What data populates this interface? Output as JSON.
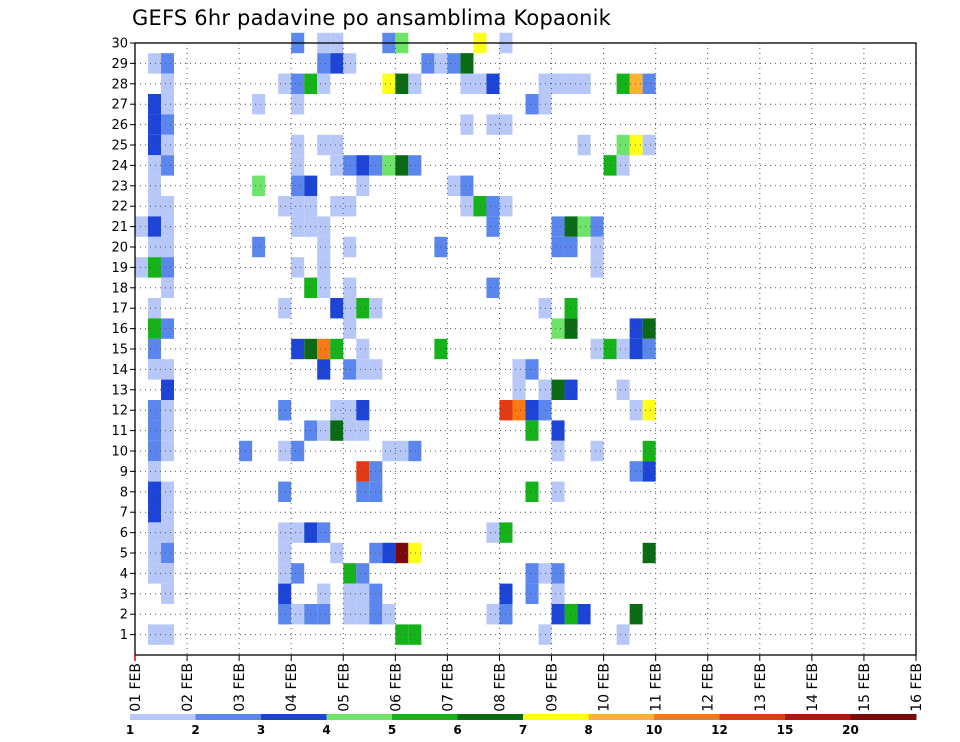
{
  "chart_data": {
    "type": "heatmap",
    "title": "GEFS 6hr padavine po ansamblima Kopaonik",
    "xlabel": "",
    "ylabel": "",
    "x_tick_labels": [
      "01 FEB",
      "02 FEB",
      "03 FEB",
      "04 FEB",
      "05 FEB",
      "06 FEB",
      "07 FEB",
      "08 FEB",
      "09 FEB",
      "10 FEB",
      "11 FEB",
      "12 FEB",
      "13 FEB",
      "14 FEB",
      "15 FEB",
      "16 FEB"
    ],
    "y_tick_labels": [
      "1",
      "2",
      "3",
      "4",
      "5",
      "6",
      "7",
      "8",
      "9",
      "10",
      "11",
      "12",
      "13",
      "14",
      "15",
      "16",
      "17",
      "18",
      "19",
      "20",
      "21",
      "22",
      "23",
      "24",
      "25",
      "26",
      "27",
      "28",
      "29",
      "30"
    ],
    "x_range_days": [
      0,
      15
    ],
    "y_range": [
      0,
      30
    ],
    "time_step_hours": 6,
    "grid": true,
    "levels": [
      {
        "label": "1",
        "color": "#b7c7f7"
      },
      {
        "label": "2",
        "color": "#5b86ee"
      },
      {
        "label": "3",
        "color": "#1c45d8"
      },
      {
        "label": "4",
        "color": "#6fe46a"
      },
      {
        "label": "5",
        "color": "#15b21a"
      },
      {
        "label": "6",
        "color": "#0a6b14"
      },
      {
        "label": "7",
        "color": "#ffff1a"
      },
      {
        "label": "8",
        "color": "#fbb132"
      },
      {
        "label": "10",
        "color": "#f97a15"
      },
      {
        "label": "12",
        "color": "#e23a14"
      },
      {
        "label": "15",
        "color": "#b81210"
      },
      {
        "label": "20",
        "color": "#7a0a08"
      }
    ],
    "legend_labels": [
      "1",
      "2",
      "3",
      "4",
      "5",
      "6",
      "7",
      "8",
      "10",
      "12",
      "15",
      "20"
    ],
    "cells_note": "each cell = [member, 6h step index from 01 FEB 00Z, level index into levels]",
    "cells": [
      [
        30,
        12,
        1
      ],
      [
        30,
        14,
        0
      ],
      [
        30,
        15,
        0
      ],
      [
        30,
        19,
        1
      ],
      [
        30,
        20,
        3
      ],
      [
        30,
        26,
        6
      ],
      [
        30,
        28,
        0
      ],
      [
        29,
        1,
        0
      ],
      [
        29,
        2,
        1
      ],
      [
        29,
        14,
        1
      ],
      [
        29,
        15,
        2
      ],
      [
        29,
        16,
        0
      ],
      [
        29,
        22,
        1
      ],
      [
        29,
        23,
        0
      ],
      [
        29,
        24,
        1
      ],
      [
        29,
        25,
        0
      ],
      [
        29,
        25,
        0
      ],
      [
        29,
        25,
        1
      ],
      [
        29,
        25,
        1
      ],
      [
        29,
        25,
        0
      ],
      [
        29,
        25,
        5
      ],
      [
        28,
        2,
        0
      ],
      [
        28,
        11,
        0
      ],
      [
        28,
        12,
        1
      ],
      [
        28,
        13,
        4
      ],
      [
        28,
        14,
        0
      ],
      [
        28,
        19,
        6
      ],
      [
        28,
        20,
        5
      ],
      [
        28,
        21,
        0
      ],
      [
        28,
        25,
        0
      ],
      [
        28,
        26,
        0
      ],
      [
        28,
        27,
        2
      ],
      [
        28,
        31,
        0
      ],
      [
        28,
        32,
        0
      ],
      [
        28,
        33,
        0
      ],
      [
        28,
        34,
        0
      ],
      [
        28,
        37,
        4
      ],
      [
        28,
        38,
        7
      ],
      [
        28,
        39,
        1
      ],
      [
        27,
        1,
        2
      ],
      [
        27,
        2,
        0
      ],
      [
        27,
        9,
        0
      ],
      [
        27,
        12,
        0
      ],
      [
        27,
        30,
        1
      ],
      [
        27,
        31,
        0
      ],
      [
        26,
        1,
        2
      ],
      [
        26,
        2,
        1
      ],
      [
        26,
        25,
        0
      ],
      [
        26,
        27,
        0
      ],
      [
        26,
        28,
        0
      ],
      [
        25,
        1,
        2
      ],
      [
        25,
        2,
        0
      ],
      [
        25,
        12,
        0
      ],
      [
        25,
        14,
        0
      ],
      [
        25,
        15,
        0
      ],
      [
        25,
        34,
        0
      ],
      [
        25,
        37,
        3
      ],
      [
        25,
        38,
        6
      ],
      [
        25,
        39,
        0
      ],
      [
        24,
        1,
        0
      ],
      [
        24,
        2,
        1
      ],
      [
        24,
        12,
        0
      ],
      [
        24,
        15,
        0
      ],
      [
        24,
        16,
        1
      ],
      [
        24,
        17,
        2
      ],
      [
        24,
        18,
        1
      ],
      [
        24,
        19,
        3
      ],
      [
        24,
        20,
        5
      ],
      [
        24,
        21,
        1
      ],
      [
        24,
        36,
        4
      ],
      [
        24,
        37,
        0
      ],
      [
        23,
        1,
        0
      ],
      [
        23,
        9,
        3
      ],
      [
        23,
        12,
        1
      ],
      [
        23,
        13,
        2
      ],
      [
        23,
        17,
        0
      ],
      [
        23,
        24,
        0
      ],
      [
        23,
        25,
        1
      ],
      [
        22,
        1,
        0
      ],
      [
        22,
        2,
        0
      ],
      [
        22,
        11,
        0
      ],
      [
        22,
        12,
        0
      ],
      [
        22,
        13,
        0
      ],
      [
        22,
        15,
        0
      ],
      [
        22,
        16,
        0
      ],
      [
        22,
        25,
        0
      ],
      [
        22,
        26,
        4
      ],
      [
        22,
        27,
        1
      ],
      [
        22,
        28,
        0
      ],
      [
        21,
        0,
        0
      ],
      [
        21,
        1,
        2
      ],
      [
        21,
        2,
        0
      ],
      [
        21,
        12,
        0
      ],
      [
        21,
        13,
        0
      ],
      [
        21,
        14,
        0
      ],
      [
        21,
        27,
        1
      ],
      [
        21,
        32,
        1
      ],
      [
        21,
        33,
        5
      ],
      [
        21,
        34,
        3
      ],
      [
        21,
        35,
        1
      ],
      [
        20,
        1,
        0
      ],
      [
        20,
        2,
        0
      ],
      [
        20,
        9,
        1
      ],
      [
        20,
        14,
        0
      ],
      [
        20,
        16,
        0
      ],
      [
        20,
        23,
        1
      ],
      [
        20,
        32,
        1
      ],
      [
        20,
        33,
        1
      ],
      [
        20,
        35,
        0
      ],
      [
        19,
        0,
        0
      ],
      [
        19,
        1,
        4
      ],
      [
        19,
        2,
        1
      ],
      [
        19,
        12,
        0
      ],
      [
        19,
        14,
        0
      ],
      [
        19,
        35,
        0
      ],
      [
        18,
        2,
        0
      ],
      [
        18,
        13,
        4
      ],
      [
        18,
        14,
        0
      ],
      [
        18,
        16,
        0
      ],
      [
        18,
        27,
        1
      ],
      [
        17,
        1,
        0
      ],
      [
        17,
        11,
        0
      ],
      [
        17,
        15,
        2
      ],
      [
        17,
        16,
        0
      ],
      [
        17,
        17,
        4
      ],
      [
        17,
        18,
        0
      ],
      [
        17,
        31,
        0
      ],
      [
        17,
        33,
        4
      ],
      [
        16,
        1,
        4
      ],
      [
        16,
        2,
        1
      ],
      [
        16,
        16,
        0
      ],
      [
        16,
        32,
        3
      ],
      [
        16,
        33,
        5
      ],
      [
        16,
        38,
        2
      ],
      [
        16,
        39,
        5
      ],
      [
        15,
        1,
        1
      ],
      [
        15,
        12,
        2
      ],
      [
        15,
        13,
        5
      ],
      [
        15,
        14,
        8
      ],
      [
        15,
        15,
        4
      ],
      [
        15,
        17,
        0
      ],
      [
        15,
        23,
        4
      ],
      [
        15,
        35,
        0
      ],
      [
        15,
        36,
        4
      ],
      [
        15,
        37,
        0
      ],
      [
        15,
        38,
        2
      ],
      [
        15,
        39,
        1
      ],
      [
        14,
        1,
        0
      ],
      [
        14,
        2,
        0
      ],
      [
        14,
        14,
        2
      ],
      [
        14,
        16,
        1
      ],
      [
        14,
        17,
        0
      ],
      [
        14,
        18,
        0
      ],
      [
        14,
        29,
        0
      ],
      [
        14,
        30,
        1
      ],
      [
        13,
        2,
        2
      ],
      [
        13,
        29,
        0
      ],
      [
        13,
        31,
        0
      ],
      [
        13,
        32,
        5
      ],
      [
        13,
        33,
        2
      ],
      [
        13,
        37,
        0
      ],
      [
        12,
        1,
        1
      ],
      [
        12,
        2,
        0
      ],
      [
        12,
        11,
        1
      ],
      [
        12,
        15,
        0
      ],
      [
        12,
        16,
        0
      ],
      [
        12,
        17,
        2
      ],
      [
        12,
        28,
        9
      ],
      [
        12,
        29,
        8
      ],
      [
        12,
        30,
        2
      ],
      [
        12,
        31,
        1
      ],
      [
        12,
        38,
        0
      ],
      [
        12,
        39,
        6
      ],
      [
        11,
        1,
        1
      ],
      [
        11,
        2,
        0
      ],
      [
        11,
        13,
        1
      ],
      [
        11,
        14,
        0
      ],
      [
        11,
        15,
        5
      ],
      [
        11,
        16,
        0
      ],
      [
        11,
        17,
        0
      ],
      [
        11,
        30,
        4
      ],
      [
        11,
        32,
        2
      ],
      [
        10,
        1,
        1
      ],
      [
        10,
        2,
        0
      ],
      [
        10,
        8,
        1
      ],
      [
        10,
        11,
        0
      ],
      [
        10,
        12,
        1
      ],
      [
        10,
        19,
        0
      ],
      [
        10,
        20,
        0
      ],
      [
        10,
        21,
        1
      ],
      [
        10,
        32,
        0
      ],
      [
        10,
        35,
        0
      ],
      [
        10,
        39,
        4
      ],
      [
        9,
        1,
        0
      ],
      [
        9,
        17,
        9
      ],
      [
        9,
        18,
        1
      ],
      [
        9,
        38,
        1
      ],
      [
        9,
        39,
        2
      ],
      [
        8,
        1,
        2
      ],
      [
        8,
        2,
        0
      ],
      [
        8,
        11,
        1
      ],
      [
        8,
        17,
        1
      ],
      [
        8,
        18,
        1
      ],
      [
        8,
        30,
        4
      ],
      [
        8,
        32,
        0
      ],
      [
        7,
        1,
        2
      ],
      [
        7,
        2,
        0
      ],
      [
        6,
        1,
        0
      ],
      [
        6,
        2,
        0
      ],
      [
        6,
        11,
        0
      ],
      [
        6,
        12,
        0
      ],
      [
        6,
        13,
        2
      ],
      [
        6,
        14,
        1
      ],
      [
        6,
        27,
        0
      ],
      [
        6,
        28,
        4
      ],
      [
        5,
        1,
        0
      ],
      [
        5,
        2,
        1
      ],
      [
        5,
        11,
        0
      ],
      [
        5,
        15,
        0
      ],
      [
        5,
        18,
        1
      ],
      [
        5,
        19,
        2
      ],
      [
        5,
        20,
        11
      ],
      [
        5,
        21,
        6
      ],
      [
        5,
        39,
        5
      ],
      [
        4,
        1,
        0
      ],
      [
        4,
        2,
        0
      ],
      [
        4,
        11,
        0
      ],
      [
        4,
        12,
        1
      ],
      [
        4,
        16,
        4
      ],
      [
        4,
        17,
        1
      ],
      [
        4,
        30,
        1
      ],
      [
        4,
        31,
        0
      ],
      [
        4,
        32,
        1
      ],
      [
        3,
        2,
        0
      ],
      [
        3,
        11,
        2
      ],
      [
        3,
        14,
        0
      ],
      [
        3,
        16,
        0
      ],
      [
        3,
        17,
        0
      ],
      [
        3,
        18,
        1
      ],
      [
        3,
        28,
        2
      ],
      [
        3,
        30,
        1
      ],
      [
        3,
        32,
        0
      ],
      [
        2,
        11,
        1
      ],
      [
        2,
        12,
        0
      ],
      [
        2,
        13,
        1
      ],
      [
        2,
        14,
        1
      ],
      [
        2,
        16,
        0
      ],
      [
        2,
        17,
        0
      ],
      [
        2,
        18,
        1
      ],
      [
        2,
        19,
        0
      ],
      [
        2,
        27,
        0
      ],
      [
        2,
        28,
        1
      ],
      [
        2,
        32,
        2
      ],
      [
        2,
        33,
        4
      ],
      [
        2,
        34,
        2
      ],
      [
        2,
        38,
        5
      ],
      [
        1,
        1,
        0
      ],
      [
        1,
        2,
        0
      ],
      [
        1,
        20,
        4
      ],
      [
        1,
        21,
        4
      ],
      [
        1,
        31,
        0
      ],
      [
        1,
        37,
        0
      ]
    ]
  }
}
